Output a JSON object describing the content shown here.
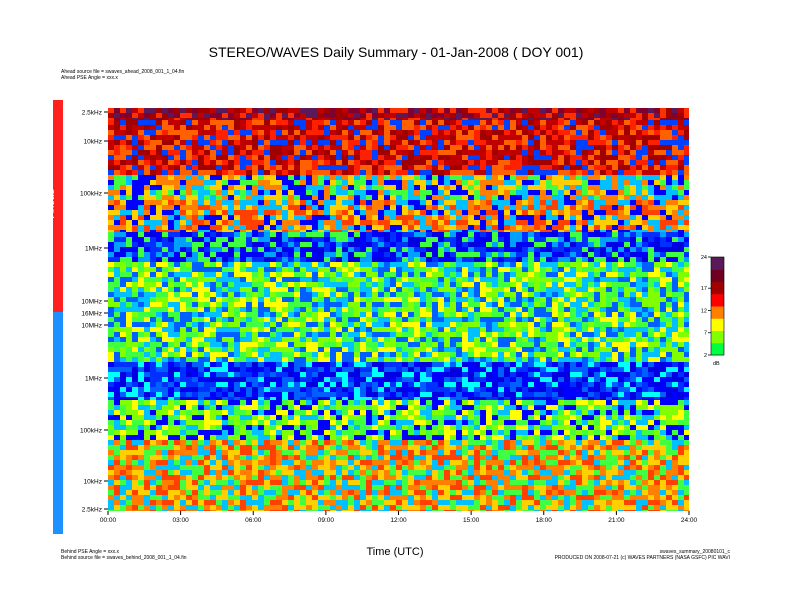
{
  "header": {
    "title": "STEREO/WAVES Daily Summary - 01-Jan-2008 ( DOY 001)",
    "ahead_source": "Ahead source file = swaves_ahead_2008_001_1_04.fin",
    "ahead_pse": "Ahead PSE Angle = xxx.x"
  },
  "bands": {
    "ahead_label": "Ahead",
    "behind_label": "Behind",
    "ahead_color": "#ff2020",
    "behind_color": "#1e90ff"
  },
  "footer": {
    "behind_pse": "Behind PSE Angle = xxx.x",
    "behind_source": "Behind source file = swaves_behind_2008_001_1_04.fin",
    "right_file": "swaves_summary_20080101_c",
    "right_prod": "PRODUCED ON 2008-07-21 (c) WAVES PARTNERS (NASA GSFC) PIC WAVI"
  },
  "chart_data": {
    "type": "heatmap",
    "xlabel": "Time (UTC)",
    "x_ticks": [
      "00:00",
      "03:00",
      "06:00",
      "09:00",
      "12:00",
      "15:00",
      "18:00",
      "21:00",
      "24:00"
    ],
    "y_ticks_ahead": [
      "2.5kHz",
      "10kHz",
      "100kHz",
      "1MHz",
      "10MHz",
      "16MHz"
    ],
    "y_ticks_behind": [
      "10MHz",
      "1MHz",
      "100kHz",
      "10kHz",
      "2.5kHz"
    ],
    "colorbar": {
      "ticks": [
        24,
        17,
        12,
        7,
        2
      ],
      "unit": "dB",
      "range": [
        2,
        24
      ],
      "colors": [
        "#00ff40",
        "#80ff00",
        "#ffff00",
        "#ff8000",
        "#ff0000",
        "#a00000",
        "#700020",
        "#5a1a5a"
      ]
    }
  }
}
